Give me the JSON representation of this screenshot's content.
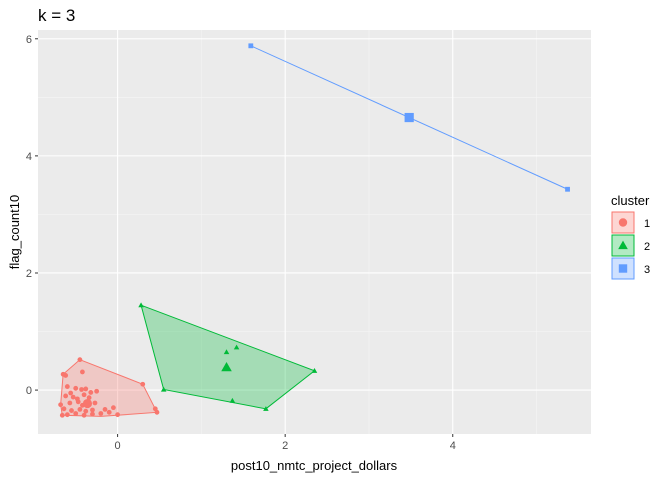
{
  "chart_data": {
    "type": "scatter",
    "title": "k = 3",
    "xlabel": "post10_nmtc_project_dollars",
    "ylabel": "flag_count10",
    "xlim": [
      -0.95,
      5.65
    ],
    "ylim": [
      -0.75,
      6.15
    ],
    "xticks": [
      0,
      2,
      4
    ],
    "yticks": [
      0,
      2,
      4,
      6
    ],
    "grid": true,
    "legend": {
      "title": "cluster",
      "position": "right"
    },
    "series": [
      {
        "name": "1",
        "shape": "circle",
        "color": "#F8766D",
        "points": [
          [
            -0.65,
            0.27
          ],
          [
            -0.62,
            0.25
          ],
          [
            -0.45,
            0.52
          ],
          [
            -0.42,
            0.31
          ],
          [
            -0.6,
            0.06
          ],
          [
            -0.5,
            0.03
          ],
          [
            -0.43,
            0.01
          ],
          [
            -0.38,
            0.02
          ],
          [
            -0.56,
            -0.05
          ],
          [
            -0.32,
            -0.04
          ],
          [
            -0.25,
            -0.02
          ],
          [
            -0.62,
            -0.1
          ],
          [
            -0.53,
            -0.12
          ],
          [
            -0.48,
            -0.15
          ],
          [
            -0.4,
            -0.08
          ],
          [
            -0.34,
            -0.13
          ],
          [
            -0.68,
            -0.25
          ],
          [
            -0.57,
            -0.22
          ],
          [
            -0.47,
            -0.2
          ],
          [
            -0.42,
            -0.26
          ],
          [
            -0.34,
            -0.24
          ],
          [
            -0.27,
            -0.22
          ],
          [
            -0.64,
            -0.32
          ],
          [
            -0.55,
            -0.35
          ],
          [
            -0.45,
            -0.33
          ],
          [
            -0.38,
            -0.36
          ],
          [
            -0.3,
            -0.34
          ],
          [
            -0.6,
            -0.42
          ],
          [
            -0.5,
            -0.4
          ],
          [
            -0.4,
            -0.43
          ],
          [
            -0.3,
            -0.41
          ],
          [
            -0.2,
            -0.4
          ],
          [
            -0.1,
            -0.38
          ],
          [
            0.0,
            -0.42
          ],
          [
            -0.15,
            -0.33
          ],
          [
            -0.05,
            -0.3
          ],
          [
            0.3,
            0.1
          ],
          [
            0.45,
            -0.32
          ],
          [
            0.47,
            -0.38
          ],
          [
            -0.66,
            -0.43
          ]
        ],
        "centroid": [
          -0.36,
          -0.23
        ],
        "hull": [
          [
            -0.68,
            -0.25
          ],
          [
            -0.65,
            0.27
          ],
          [
            -0.45,
            0.52
          ],
          [
            0.3,
            0.1
          ],
          [
            0.47,
            -0.38
          ],
          [
            -0.2,
            -0.45
          ],
          [
            -0.66,
            -0.43
          ]
        ]
      },
      {
        "name": "2",
        "shape": "triangle",
        "color": "#00BA38",
        "points": [
          [
            0.28,
            1.45
          ],
          [
            0.55,
            0.01
          ],
          [
            1.3,
            0.65
          ],
          [
            1.42,
            0.73
          ],
          [
            1.37,
            -0.18
          ],
          [
            1.77,
            -0.32
          ],
          [
            2.35,
            0.33
          ]
        ],
        "centroid": [
          1.3,
          0.39
        ],
        "hull": [
          [
            0.28,
            1.45
          ],
          [
            2.35,
            0.33
          ],
          [
            1.77,
            -0.32
          ],
          [
            0.55,
            0.01
          ]
        ]
      },
      {
        "name": "3",
        "shape": "square",
        "color": "#619CFF",
        "points": [
          [
            1.59,
            5.88
          ],
          [
            5.37,
            3.43
          ]
        ],
        "centroid": [
          3.48,
          4.655
        ],
        "hull": [
          [
            1.59,
            5.88
          ],
          [
            5.37,
            3.43
          ]
        ]
      }
    ]
  }
}
